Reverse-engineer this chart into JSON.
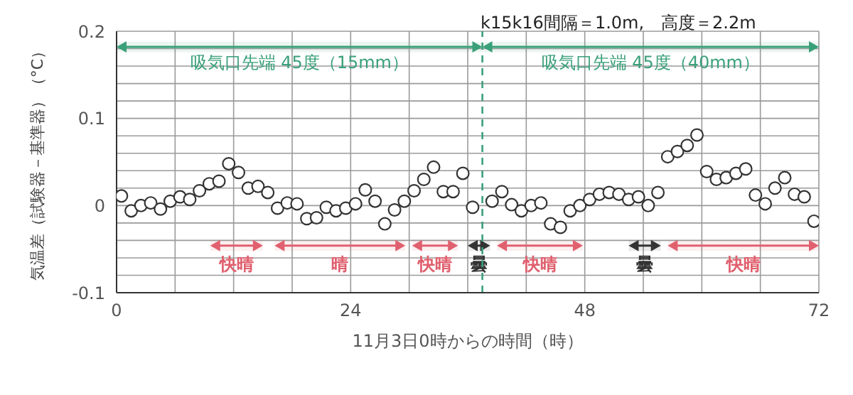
{
  "chart_data": {
    "type": "scatter",
    "xlabel": "11月3日0時からの時間（時）",
    "ylabel": "気温差（試験器－基準器）（°C）",
    "annotations": [
      "k15k16間隔＝1.0m,　高度＝2.2m"
    ],
    "x": [
      0.5,
      1.5,
      2.5,
      3.5,
      4.5,
      5.5,
      6.5,
      7.5,
      8.5,
      9.5,
      10.5,
      11.5,
      12.5,
      13.5,
      14.5,
      15.5,
      16.5,
      17.5,
      18.5,
      19.5,
      20.5,
      21.5,
      22.5,
      23.5,
      24.5,
      25.5,
      26.5,
      27.5,
      28.5,
      29.5,
      30.5,
      31.5,
      32.5,
      33.5,
      34.5,
      35.5,
      36.5,
      37.5,
      38.5,
      39.5,
      40.5,
      41.5,
      42.5,
      43.5,
      44.5,
      45.5,
      46.5,
      47.5,
      48.5,
      49.5,
      50.5,
      51.5,
      52.5,
      53.5,
      54.5,
      55.5,
      56.5,
      57.5,
      58.5,
      59.5,
      60.5,
      61.5,
      62.5,
      63.5,
      64.5,
      65.5,
      66.5,
      67.5,
      68.5,
      69.5,
      70.5,
      71.5
    ],
    "values": [
      0.011,
      -0.006,
      0.0,
      0.003,
      -0.004,
      0.005,
      0.01,
      0.007,
      0.017,
      0.025,
      0.028,
      0.048,
      0.038,
      0.02,
      0.022,
      0.015,
      -0.003,
      0.003,
      0.002,
      -0.015,
      -0.014,
      -0.002,
      -0.006,
      -0.003,
      0.002,
      0.018,
      0.005,
      -0.021,
      -0.005,
      0.005,
      0.017,
      0.03,
      0.044,
      0.016,
      0.016,
      0.037,
      -0.002,
      null,
      0.005,
      0.016,
      0.001,
      -0.006,
      0.0,
      0.003,
      -0.021,
      -0.025,
      -0.006,
      0.0,
      0.007,
      0.013,
      0.015,
      0.013,
      0.007,
      0.01,
      0.0,
      0.015,
      0.056,
      0.062,
      0.069,
      0.081,
      0.039,
      0.03,
      0.032,
      0.037,
      0.042,
      0.012,
      0.002,
      0.02,
      0.032,
      0.013,
      0.01,
      -0.018
    ],
    "color": "#333333",
    "marker": "circle",
    "xlim": [
      0,
      72
    ],
    "xticks": [
      0,
      {
        "value": 6,
        "label": null
      },
      {
        "value": 12,
        "label": null
      },
      {
        "value": 18,
        "label": null
      },
      24,
      {
        "value": 30,
        "label": null
      },
      {
        "value": 36,
        "label": null
      },
      {
        "value": 42,
        "label": null
      },
      48,
      {
        "value": 54,
        "label": null
      },
      {
        "value": 60,
        "label": null
      },
      {
        "value": 66,
        "label": null
      },
      72
    ],
    "ylim": [
      -0.1,
      0.2
    ],
    "yticks": [
      -0.1,
      {
        "value": -0.08,
        "label": null
      },
      {
        "value": -0.06,
        "label": null
      },
      {
        "value": -0.04,
        "label": null
      },
      {
        "value": -0.02,
        "label": null
      },
      0,
      {
        "value": 0.02,
        "label": null
      },
      {
        "value": 0.04,
        "label": null
      },
      {
        "value": 0.06,
        "label": null
      },
      {
        "value": 0.08,
        "label": null
      },
      0.1,
      {
        "value": 0.12,
        "label": null
      },
      {
        "value": 0.14,
        "label": null
      },
      {
        "value": 0.16,
        "label": null
      },
      {
        "value": 0.18,
        "label": null
      },
      0.2
    ],
    "grid": true,
    "ref_lines": [
      {
        "axis": "x",
        "value": 37.5,
        "color": "#3aa07a",
        "line_style": "dashed"
      }
    ],
    "bands": [
      {
        "axis": "x",
        "from": 0,
        "to": 37.5,
        "label": "吸気口先端 45度（15mm）",
        "color": "#3aa07a"
      },
      {
        "axis": "x",
        "from": 37.5,
        "to": 72,
        "label": "吸気口先端 45度（40mm）",
        "color": "#3aa07a"
      },
      {
        "axis": "x",
        "from": 9.6,
        "to": 15,
        "label": "快晴",
        "color": "#e0606e"
      },
      {
        "axis": "x",
        "from": 16.2,
        "to": 29.6,
        "label": "晴",
        "color": "#e0606e"
      },
      {
        "axis": "x",
        "from": 30.3,
        "to": 35,
        "label": "快晴",
        "color": "#e0606e"
      },
      {
        "axis": "x",
        "from": 36,
        "to": 38.3,
        "label": "曇",
        "color": "#333333"
      },
      {
        "axis": "x",
        "from": 39,
        "to": 47.8,
        "label": "快晴",
        "color": "#e0606e"
      },
      {
        "axis": "x",
        "from": 52.5,
        "to": 55.8,
        "label": "曇",
        "color": "#333333"
      },
      {
        "axis": "x",
        "from": 56.5,
        "to": 72,
        "label": "快晴",
        "color": "#e0606e"
      }
    ]
  }
}
